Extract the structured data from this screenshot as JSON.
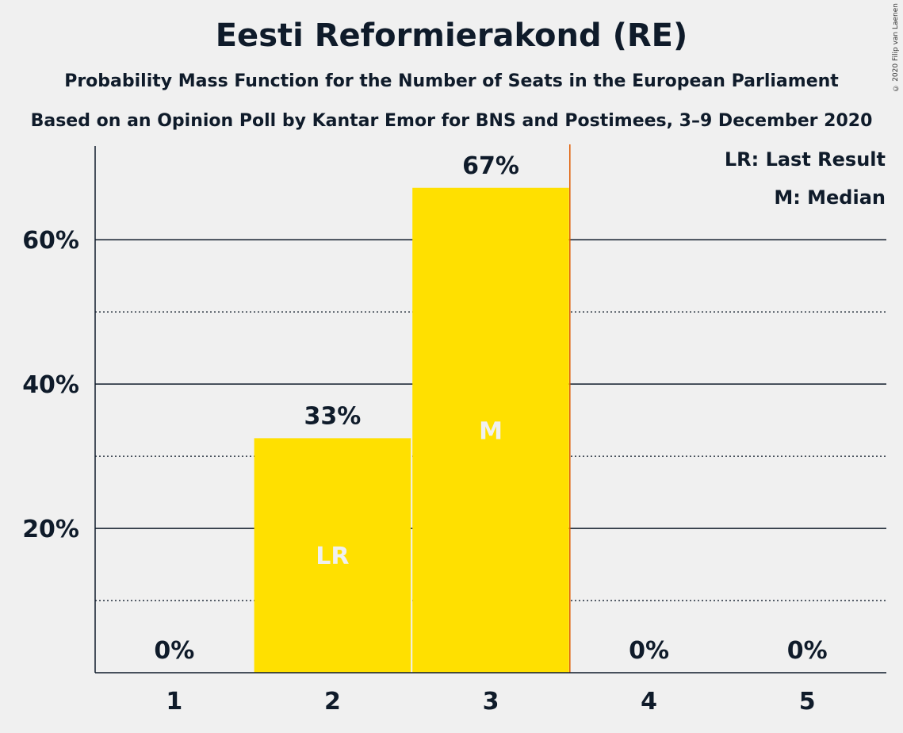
{
  "title": "Eesti Reformierakond (RE)",
  "subtitle1": "Probability Mass Function for the Number of Seats in the European Parliament",
  "subtitle2": "Based on an Opinion Poll by Kantar Emor for BNS and Postimees, 3–9 December 2020",
  "copyright": "© 2020 Filip van Laenen",
  "legend": [
    "LR: Last Result",
    "M: Median"
  ],
  "colors": {
    "bar": "#ffe000",
    "text": "#0f1b2a",
    "background": "#f0f0f0",
    "median_line": "#e05a00"
  },
  "chart_data": {
    "type": "bar",
    "categories": [
      "1",
      "2",
      "3",
      "4",
      "5"
    ],
    "values": [
      0,
      32.5,
      67.2,
      0,
      0
    ],
    "data_labels": [
      "0%",
      "33%",
      "67%",
      "0%",
      "0%"
    ],
    "bar_markers": [
      "",
      "LR",
      "M",
      "",
      ""
    ],
    "ylim": [
      0,
      73
    ],
    "y_ticks": [
      {
        "value": 20,
        "label": "20%"
      },
      {
        "value": 40,
        "label": "40%"
      },
      {
        "value": 60,
        "label": "60%"
      }
    ],
    "minor_gridlines": [
      10,
      30,
      50
    ],
    "median_line_after_category": "3",
    "grid": true,
    "legend_position": "top-right"
  }
}
